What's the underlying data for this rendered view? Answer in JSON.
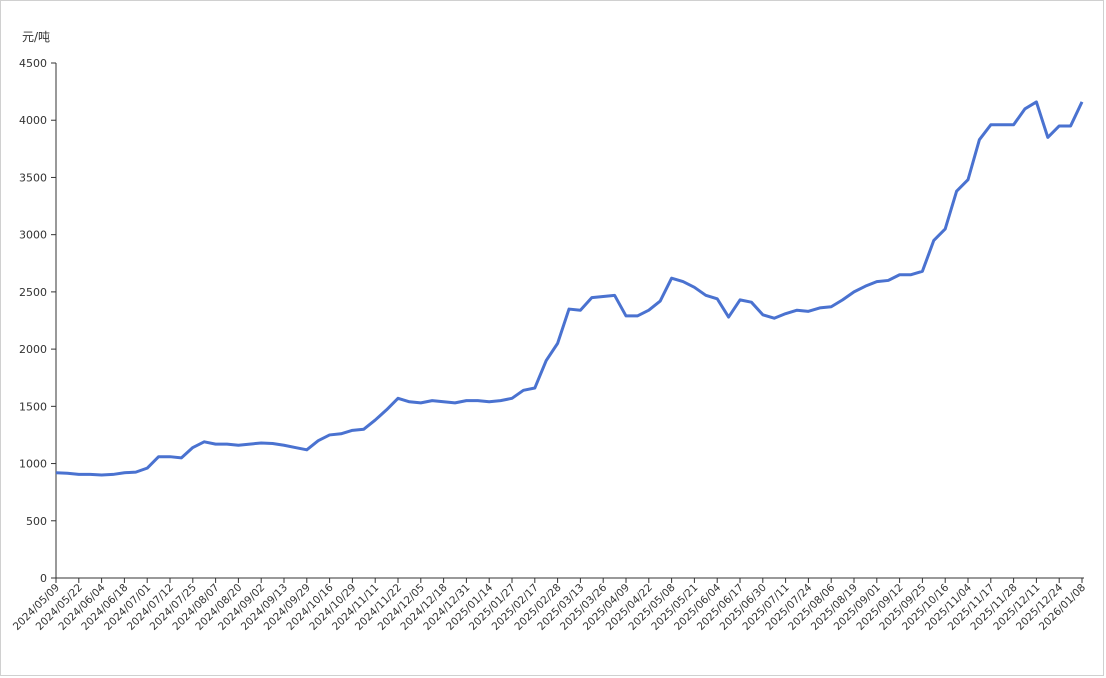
{
  "chart_data": {
    "type": "line",
    "y_unit_label": "元/吨",
    "categories": [
      "2024/05/09",
      null,
      "2024/05/22",
      null,
      "2024/06/04",
      null,
      "2024/06/18",
      null,
      "2024/07/01",
      null,
      "2024/07/12",
      null,
      "2024/07/25",
      null,
      "2024/08/07",
      null,
      "2024/08/20",
      null,
      "2024/09/02",
      null,
      "2024/09/13",
      null,
      "2024/09/29",
      null,
      "2024/10/16",
      null,
      "2024/10/29",
      null,
      "2024/11/11",
      null,
      "2024/11/22",
      null,
      "2024/12/05",
      null,
      "2024/12/18",
      null,
      "2024/12/31",
      null,
      "2025/01/14",
      null,
      "2025/01/27",
      null,
      "2025/02/17",
      null,
      "2025/02/28",
      null,
      "2025/03/13",
      null,
      "2025/03/26",
      null,
      "2025/04/09",
      null,
      "2025/04/22",
      null,
      "2025/05/08",
      null,
      "2025/05/21",
      null,
      "2025/06/04",
      null,
      "2025/06/17",
      null,
      "2025/06/30",
      null,
      "2025/07/11",
      null,
      "2025/07/24",
      null,
      "2025/08/06",
      null,
      "2025/08/19",
      null,
      "2025/09/01",
      null,
      "2025/09/12",
      null,
      "2025/09/25",
      null,
      "2025/10/16",
      null,
      "2025/11/04",
      null,
      "2025/11/17",
      null,
      "2025/11/28",
      null,
      "2025/12/11",
      null,
      "2025/12/24",
      null,
      "2026/01/08"
    ],
    "series": [
      {
        "color": "#4a72d0",
        "values": [
          920,
          915,
          905,
          905,
          900,
          905,
          920,
          925,
          960,
          1060,
          1060,
          1050,
          1140,
          1190,
          1170,
          1170,
          1160,
          1170,
          1180,
          1175,
          1160,
          1140,
          1120,
          1200,
          1250,
          1260,
          1290,
          1300,
          1380,
          1470,
          1570,
          1540,
          1530,
          1550,
          1540,
          1530,
          1550,
          1550,
          1540,
          1550,
          1570,
          1640,
          1660,
          1900,
          2050,
          2350,
          2340,
          2450,
          2460,
          2470,
          2290,
          2290,
          2340,
          2420,
          2620,
          2590,
          2540,
          2470,
          2440,
          2280,
          2430,
          2410,
          2300,
          2270,
          2310,
          2340,
          2330,
          2360,
          2370,
          2430,
          2500,
          2550,
          2590,
          2600,
          2650,
          2650,
          2680,
          2950,
          3050,
          3380,
          3480,
          3830,
          3960,
          3960,
          3960,
          4100,
          4160,
          3850,
          3950,
          3950,
          4160
        ]
      }
    ],
    "ylim": [
      0,
      4500
    ],
    "yticks": [
      0,
      500,
      1000,
      1500,
      2000,
      2500,
      3000,
      3500,
      4000,
      4500
    ]
  }
}
